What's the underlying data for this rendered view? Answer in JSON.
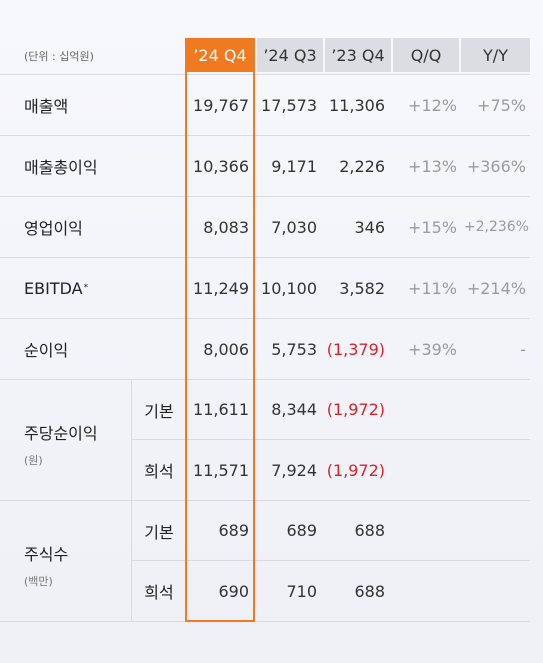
{
  "unit_note": "(단위 : 십억원)",
  "columns": [
    "’24 Q4",
    "’24 Q3",
    "’23 Q4",
    "Q/Q",
    "Y/Y"
  ],
  "rows": [
    {
      "label": "매출액",
      "values": [
        "19,767",
        "17,573",
        "11,306",
        "+12%",
        "+75%"
      ]
    },
    {
      "label": "매출총이익",
      "values": [
        "10,366",
        "9,171",
        "2,226",
        "+13%",
        "+366%"
      ]
    },
    {
      "label": "영업이익",
      "values": [
        "8,083",
        "7,030",
        "346",
        "+15%",
        "+2,236%"
      ]
    },
    {
      "label": "EBITDA",
      "label_mark": "*",
      "values": [
        "11,249",
        "10,100",
        "3,582",
        "+11%",
        "+214%"
      ]
    },
    {
      "label": "순이익",
      "values": [
        "8,006",
        "5,753",
        "(1,379)",
        "+39%",
        "-"
      ]
    }
  ],
  "eps": {
    "label": "주당순이익",
    "unit": "(원)",
    "basic": {
      "kind": "기본",
      "values": [
        "11,611",
        "8,344",
        "(1,972)"
      ]
    },
    "diluted": {
      "kind": "희석",
      "values": [
        "11,571",
        "7,924",
        "(1,972)"
      ]
    }
  },
  "shares": {
    "label": "주식수",
    "unit": "(백만)",
    "basic": {
      "kind": "기본",
      "values": [
        "689",
        "689",
        "688"
      ]
    },
    "diluted": {
      "kind": "희석",
      "values": [
        "690",
        "710",
        "688"
      ]
    }
  },
  "colors": {
    "highlight": "#f07a22",
    "negative": "#d9232a",
    "header_bg": "#dcdde2"
  }
}
